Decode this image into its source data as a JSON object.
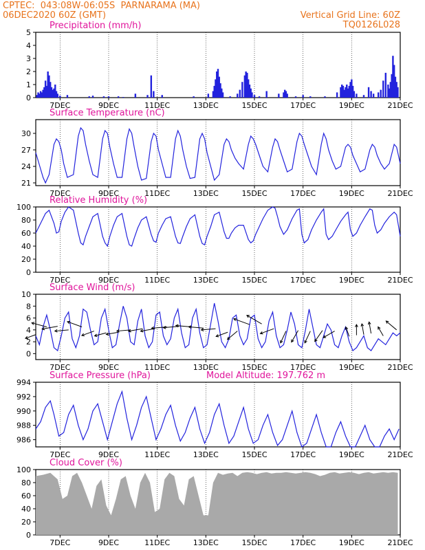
{
  "header": {
    "line1_left": "CPTEC:  043:08W-06:05S  PARNARAMA (MA)",
    "line2_left": "06DEC2020 60Z (GMT)",
    "line1_right": "Vertical Grid Line: 60Z",
    "line2_right": "TQ0126L028"
  },
  "colors": {
    "header": "#e8731c",
    "title": "#e0149b",
    "line": "#2222dd",
    "cloud": "#a9a9a9"
  },
  "x_axis": {
    "tick_labels": [
      "7DEC",
      "9DEC",
      "11DEC",
      "13DEC",
      "15DEC",
      "17DEC",
      "19DEC",
      "21DEC"
    ],
    "tick_days": [
      7,
      9,
      11,
      13,
      15,
      17,
      19,
      21
    ],
    "range_days": [
      6,
      21
    ]
  },
  "chart_data": [
    {
      "id": "precip",
      "type": "bar",
      "title": "Precipitation (mm/h)",
      "ylim": [
        0,
        5
      ],
      "yticks": [
        0,
        1,
        2,
        3,
        4,
        5
      ],
      "grid": "vertical dotted",
      "x_days": [
        6.05,
        6.1,
        6.15,
        6.2,
        6.25,
        6.3,
        6.35,
        6.4,
        6.45,
        6.5,
        6.55,
        6.6,
        6.65,
        6.7,
        6.75,
        6.8,
        6.85,
        6.9,
        7.0,
        7.3,
        8.2,
        8.35,
        8.8,
        9.0,
        9.4,
        9.6,
        10.1,
        10.6,
        10.75,
        10.85,
        11.2,
        12.5,
        13.1,
        13.3,
        13.35,
        13.4,
        13.45,
        13.5,
        13.55,
        13.6,
        13.65,
        13.7,
        14.0,
        14.3,
        14.4,
        14.5,
        14.6,
        14.65,
        14.7,
        14.75,
        14.8,
        14.85,
        14.9,
        15.0,
        15.2,
        15.5,
        16.0,
        16.2,
        16.25,
        16.3,
        16.35,
        16.7,
        17.0,
        17.3,
        17.9,
        18.4,
        18.55,
        18.6,
        18.65,
        18.7,
        18.75,
        18.8,
        18.85,
        18.9,
        18.95,
        19.0,
        19.05,
        19.1,
        19.2,
        19.5,
        19.7,
        19.8,
        19.9,
        20.1,
        20.2,
        20.3,
        20.4,
        20.5,
        20.55,
        20.6,
        20.65,
        20.7,
        20.75,
        20.8,
        20.85,
        20.9
      ],
      "values": [
        0.2,
        0.4,
        0.3,
        0.5,
        0.4,
        0.6,
        0.8,
        1.3,
        0.9,
        2.0,
        1.7,
        1.2,
        0.8,
        0.6,
        0.7,
        1.0,
        0.5,
        0.3,
        0.15,
        0.2,
        0.1,
        0.15,
        0.1,
        0.1,
        0.1,
        0.05,
        0.3,
        0.2,
        1.7,
        0.5,
        0.2,
        0.1,
        0.3,
        0.5,
        0.9,
        1.4,
        2.0,
        2.2,
        1.6,
        1.1,
        0.7,
        0.4,
        0.1,
        0.3,
        0.6,
        1.2,
        1.7,
        2.0,
        1.9,
        1.4,
        1.0,
        0.7,
        0.4,
        0.2,
        0.1,
        0.5,
        0.3,
        0.4,
        0.6,
        0.5,
        0.3,
        0.1,
        0.2,
        0.1,
        0.1,
        0.4,
        0.8,
        1.0,
        0.9,
        0.6,
        0.8,
        1.0,
        0.7,
        0.9,
        1.2,
        1.4,
        0.9,
        0.5,
        0.3,
        0.2,
        0.8,
        0.5,
        0.3,
        0.4,
        0.6,
        1.3,
        1.9,
        1.0,
        0.7,
        1.2,
        1.8,
        3.2,
        2.5,
        1.6,
        1.2,
        0.8
      ]
    },
    {
      "id": "temperature",
      "type": "line",
      "title": "Surface Temperature (nC)",
      "ylim": [
        20.5,
        32.5
      ],
      "yticks": [
        21,
        24,
        27,
        30
      ],
      "grid": "vertical dotted",
      "x_days": [
        6.0,
        6.1,
        6.2,
        6.3,
        6.4,
        6.55,
        6.75,
        6.85,
        6.95,
        7.05,
        7.15,
        7.3,
        7.55,
        7.75,
        7.85,
        7.95,
        8.05,
        8.2,
        8.35,
        8.55,
        8.75,
        8.85,
        8.95,
        9.05,
        9.2,
        9.35,
        9.55,
        9.75,
        9.85,
        9.95,
        10.05,
        10.2,
        10.35,
        10.55,
        10.75,
        10.85,
        10.95,
        11.05,
        11.2,
        11.35,
        11.55,
        11.75,
        11.85,
        11.95,
        12.05,
        12.2,
        12.35,
        12.55,
        12.75,
        12.85,
        12.95,
        13.05,
        13.2,
        13.35,
        13.55,
        13.75,
        13.85,
        13.95,
        14.05,
        14.2,
        14.35,
        14.55,
        14.75,
        14.85,
        14.95,
        15.05,
        15.2,
        15.35,
        15.55,
        15.75,
        15.85,
        15.95,
        16.05,
        16.2,
        16.35,
        16.55,
        16.75,
        16.85,
        16.95,
        17.05,
        17.2,
        17.35,
        17.55,
        17.75,
        17.85,
        17.95,
        18.05,
        18.2,
        18.35,
        18.55,
        18.75,
        18.85,
        18.95,
        19.05,
        19.2,
        19.35,
        19.55,
        19.75,
        19.85,
        19.95,
        20.05,
        20.2,
        20.35,
        20.55,
        20.75,
        20.85,
        21.0
      ],
      "values": [
        26.5,
        25.0,
        23.5,
        22.0,
        21.0,
        22.5,
        28.0,
        29.0,
        28.5,
        27.0,
        24.5,
        22.0,
        22.5,
        29.5,
        31.0,
        30.5,
        28.0,
        25.0,
        22.5,
        22.0,
        29.0,
        30.5,
        30.0,
        27.5,
        24.5,
        22.0,
        22.0,
        29.0,
        30.8,
        30.0,
        27.5,
        24.0,
        21.5,
        21.8,
        28.5,
        30.0,
        29.5,
        27.0,
        24.5,
        22.0,
        22.0,
        29.0,
        30.5,
        29.5,
        27.0,
        24.0,
        21.8,
        22.0,
        29.0,
        30.0,
        29.0,
        26.5,
        24.0,
        21.5,
        22.5,
        28.0,
        29.0,
        28.5,
        27.0,
        25.5,
        24.5,
        23.5,
        28.0,
        29.5,
        29.0,
        28.0,
        26.0,
        24.0,
        23.0,
        27.5,
        29.0,
        28.5,
        27.0,
        25.0,
        23.0,
        23.5,
        28.5,
        30.0,
        29.5,
        28.0,
        26.0,
        24.0,
        22.5,
        28.0,
        30.0,
        29.0,
        27.0,
        25.0,
        23.5,
        24.0,
        27.5,
        28.0,
        27.5,
        26.0,
        24.5,
        23.0,
        23.5,
        27.0,
        28.0,
        27.5,
        26.0,
        24.5,
        23.5,
        24.5,
        28.0,
        27.5,
        24.5
      ]
    },
    {
      "id": "humidity",
      "type": "line",
      "title": "Relative Humidity (%)",
      "ylim": [
        0,
        100
      ],
      "yticks": [
        0,
        20,
        40,
        60,
        80,
        100
      ],
      "grid": "vertical dotted",
      "x_days": [
        6.0,
        6.2,
        6.4,
        6.55,
        6.75,
        6.85,
        6.95,
        7.05,
        7.2,
        7.35,
        7.55,
        7.75,
        7.85,
        7.95,
        8.05,
        8.2,
        8.35,
        8.55,
        8.75,
        8.85,
        8.95,
        9.05,
        9.2,
        9.35,
        9.55,
        9.75,
        9.85,
        9.95,
        10.05,
        10.2,
        10.35,
        10.55,
        10.75,
        10.85,
        10.95,
        11.05,
        11.2,
        11.35,
        11.55,
        11.75,
        11.85,
        11.95,
        12.05,
        12.2,
        12.35,
        12.55,
        12.75,
        12.85,
        12.95,
        13.05,
        13.2,
        13.35,
        13.55,
        13.75,
        13.85,
        13.95,
        14.05,
        14.2,
        14.35,
        14.55,
        14.75,
        14.85,
        14.95,
        15.05,
        15.2,
        15.35,
        15.55,
        15.75,
        15.85,
        15.95,
        16.05,
        16.2,
        16.35,
        16.55,
        16.75,
        16.85,
        16.95,
        17.05,
        17.2,
        17.35,
        17.55,
        17.75,
        17.85,
        17.95,
        18.05,
        18.2,
        18.35,
        18.55,
        18.75,
        18.85,
        18.95,
        19.05,
        19.2,
        19.35,
        19.55,
        19.75,
        19.85,
        19.95,
        20.05,
        20.2,
        20.35,
        20.55,
        20.75,
        20.85,
        21.0
      ],
      "values": [
        60,
        75,
        90,
        95,
        75,
        60,
        62,
        78,
        92,
        100,
        95,
        60,
        45,
        42,
        55,
        70,
        85,
        90,
        55,
        45,
        40,
        55,
        72,
        85,
        90,
        55,
        42,
        40,
        52,
        68,
        80,
        85,
        58,
        48,
        46,
        60,
        72,
        82,
        85,
        55,
        45,
        44,
        55,
        70,
        82,
        88,
        55,
        44,
        42,
        55,
        70,
        88,
        92,
        62,
        52,
        52,
        60,
        68,
        72,
        72,
        50,
        45,
        48,
        58,
        70,
        82,
        95,
        100,
        98,
        85,
        70,
        58,
        65,
        82,
        95,
        97,
        58,
        45,
        50,
        65,
        80,
        92,
        97,
        58,
        50,
        55,
        65,
        78,
        88,
        92,
        65,
        55,
        60,
        72,
        85,
        97,
        95,
        72,
        60,
        65,
        75,
        85,
        92,
        88,
        55
      ]
    },
    {
      "id": "wind",
      "type": "line",
      "title": "Surface Wind (m/s)",
      "ylim": [
        -1,
        10
      ],
      "yticks": [
        0,
        2,
        4,
        6,
        8,
        10
      ],
      "grid": "vertical dotted",
      "x_days": [
        6.0,
        6.15,
        6.3,
        6.45,
        6.6,
        6.75,
        6.9,
        7.05,
        7.2,
        7.35,
        7.5,
        7.65,
        7.8,
        7.95,
        8.1,
        8.25,
        8.4,
        8.55,
        8.7,
        8.85,
        9.0,
        9.15,
        9.3,
        9.45,
        9.6,
        9.75,
        9.9,
        10.05,
        10.2,
        10.35,
        10.5,
        10.65,
        10.8,
        10.95,
        11.1,
        11.25,
        11.4,
        11.55,
        11.7,
        11.85,
        12.0,
        12.15,
        12.3,
        12.45,
        12.6,
        12.75,
        12.9,
        13.05,
        13.2,
        13.35,
        13.5,
        13.65,
        13.8,
        13.95,
        14.1,
        14.25,
        14.4,
        14.55,
        14.7,
        14.85,
        15.0,
        15.15,
        15.3,
        15.45,
        15.6,
        15.75,
        15.9,
        16.05,
        16.2,
        16.35,
        16.5,
        16.65,
        16.8,
        16.95,
        17.1,
        17.25,
        17.4,
        17.55,
        17.7,
        17.85,
        18.0,
        18.15,
        18.3,
        18.45,
        18.6,
        18.75,
        18.9,
        19.05,
        19.2,
        19.35,
        19.5,
        19.65,
        19.8,
        19.95,
        20.1,
        20.25,
        20.4,
        20.55,
        20.7,
        20.85,
        21.0
      ],
      "values": [
        3.0,
        1.5,
        4.5,
        6.5,
        4.0,
        1.0,
        0.5,
        3.0,
        6.0,
        7.0,
        2.5,
        1.0,
        3.0,
        7.5,
        7.0,
        4.0,
        1.5,
        2.0,
        6.0,
        7.5,
        4.0,
        1.0,
        1.5,
        5.0,
        8.0,
        6.0,
        2.0,
        1.5,
        5.5,
        7.5,
        3.0,
        1.0,
        2.0,
        6.5,
        7.0,
        3.0,
        1.5,
        2.5,
        6.0,
        7.5,
        3.5,
        1.0,
        1.5,
        6.0,
        7.5,
        3.5,
        1.0,
        1.5,
        5.0,
        8.5,
        5.5,
        2.0,
        1.0,
        2.5,
        6.0,
        6.5,
        3.0,
        1.5,
        2.5,
        6.0,
        6.5,
        2.5,
        1.0,
        2.0,
        5.5,
        7.0,
        3.0,
        1.0,
        1.5,
        4.0,
        7.0,
        5.0,
        1.5,
        1.0,
        4.0,
        7.5,
        4.5,
        1.5,
        1.0,
        3.0,
        5.0,
        4.0,
        1.5,
        1.0,
        3.0,
        4.5,
        2.0,
        0.5,
        1.0,
        2.0,
        3.0,
        1.0,
        0.5,
        1.5,
        2.5,
        2.0,
        1.5,
        2.5,
        3.5,
        3.0,
        3.5
      ],
      "arrow_days": [
        6.0,
        6.45,
        6.9,
        7.35,
        7.9,
        8.4,
        8.9,
        9.4,
        9.9,
        10.4,
        10.9,
        11.4,
        11.9,
        12.4,
        12.9,
        13.4,
        13.9,
        14.3,
        14.8,
        15.3,
        15.8,
        16.3,
        16.8,
        17.3,
        17.8,
        18.3,
        18.9,
        19.2,
        19.5,
        19.8,
        20.3,
        20.85
      ],
      "arrow_speeds": [
        3.2,
        4.5,
        4.6,
        4.0,
        4.5,
        3.8,
        3.5,
        3.6,
        4.0,
        4.2,
        4.2,
        4.5,
        4.6,
        4.5,
        4.3,
        4.2,
        3.6,
        3.8,
        4.9,
        5.0,
        4.2,
        3.8,
        3.9,
        3.8,
        3.9,
        3.8,
        2.9,
        3.1,
        3.2,
        3.4,
        3.0,
        4.0
      ],
      "arrow_dirs_deg": [
        200,
        165,
        190,
        185,
        160,
        200,
        195,
        190,
        185,
        190,
        190,
        185,
        185,
        175,
        175,
        185,
        200,
        220,
        160,
        150,
        200,
        245,
        240,
        245,
        235,
        210,
        110,
        90,
        100,
        100,
        120,
        140
      ]
    },
    {
      "id": "pressure",
      "type": "line",
      "title": "Surface Pressure (hPa)",
      "annotation": "Model Altitude: 197.762 m",
      "ylim": [
        985,
        994
      ],
      "yticks": [
        986,
        988,
        990,
        992,
        994
      ],
      "grid": "vertical dotted",
      "x_days": [
        6.0,
        6.2,
        6.4,
        6.6,
        6.75,
        6.95,
        7.15,
        7.35,
        7.55,
        7.75,
        7.95,
        8.15,
        8.35,
        8.55,
        8.75,
        8.95,
        9.15,
        9.35,
        9.55,
        9.75,
        9.95,
        10.15,
        10.35,
        10.55,
        10.75,
        10.95,
        11.15,
        11.35,
        11.55,
        11.75,
        11.95,
        12.15,
        12.35,
        12.55,
        12.75,
        12.95,
        13.15,
        13.35,
        13.55,
        13.75,
        13.95,
        14.15,
        14.35,
        14.55,
        14.75,
        14.95,
        15.15,
        15.35,
        15.55,
        15.75,
        15.95,
        16.15,
        16.35,
        16.55,
        16.75,
        16.95,
        17.15,
        17.35,
        17.55,
        17.75,
        17.95,
        18.15,
        18.35,
        18.55,
        18.75,
        18.95,
        19.15,
        19.35,
        19.55,
        19.75,
        19.95,
        20.15,
        20.35,
        20.55,
        20.75,
        20.95
      ],
      "values": [
        987.5,
        988.5,
        990.5,
        991.4,
        989.5,
        986.5,
        987.0,
        989.5,
        990.8,
        988.0,
        986.0,
        987.5,
        990.0,
        991.0,
        988.5,
        986.0,
        988.5,
        991.0,
        992.7,
        989.0,
        986.0,
        988.0,
        990.5,
        992.0,
        989.0,
        986.0,
        987.5,
        989.5,
        990.8,
        988.0,
        985.8,
        987.0,
        989.0,
        990.5,
        987.5,
        985.5,
        987.0,
        989.5,
        991.0,
        988.0,
        985.5,
        986.5,
        988.5,
        990.5,
        987.5,
        985.5,
        986.0,
        988.0,
        989.5,
        987.0,
        985.2,
        986.0,
        988.0,
        990.0,
        987.0,
        985.0,
        985.5,
        987.5,
        989.5,
        987.0,
        985.0,
        985.0,
        987.0,
        988.5,
        986.5,
        985.0,
        985.0,
        986.5,
        988.0,
        986.0,
        985.0,
        985.0,
        986.5,
        987.5,
        986.0,
        987.5
      ]
    },
    {
      "id": "cloud",
      "type": "area",
      "title": "Cloud Cover (%)",
      "ylim": [
        0,
        100
      ],
      "yticks": [
        0,
        20,
        40,
        60,
        80,
        100
      ],
      "grid": "vertical dotted",
      "x_days": [
        6.0,
        6.3,
        6.6,
        6.9,
        7.1,
        7.3,
        7.5,
        7.7,
        7.9,
        8.1,
        8.3,
        8.5,
        8.7,
        8.9,
        9.1,
        9.3,
        9.5,
        9.7,
        9.9,
        10.1,
        10.3,
        10.5,
        10.7,
        10.9,
        11.1,
        11.3,
        11.5,
        11.7,
        11.9,
        12.1,
        12.3,
        12.5,
        12.7,
        12.9,
        13.1,
        13.3,
        13.5,
        13.7,
        13.9,
        14.1,
        14.3,
        14.5,
        14.7,
        14.9,
        15.1,
        15.3,
        15.5,
        15.7,
        15.9,
        16.1,
        16.3,
        16.5,
        16.7,
        16.9,
        17.1,
        17.3,
        17.5,
        17.7,
        17.9,
        18.1,
        18.3,
        18.5,
        18.7,
        18.9,
        19.1,
        19.3,
        19.5,
        19.7,
        19.9,
        20.1,
        20.3,
        20.5,
        20.7,
        20.9
      ],
      "values": [
        90,
        92,
        95,
        85,
        55,
        60,
        90,
        95,
        80,
        60,
        40,
        75,
        85,
        45,
        30,
        55,
        85,
        90,
        60,
        40,
        80,
        95,
        80,
        35,
        40,
        85,
        95,
        90,
        55,
        45,
        85,
        90,
        60,
        30,
        30,
        80,
        95,
        92,
        94,
        95,
        90,
        95,
        96,
        95,
        93,
        95,
        96,
        94,
        95,
        95,
        96,
        95,
        94,
        95,
        96,
        95,
        93,
        90,
        92,
        95,
        96,
        94,
        95,
        96,
        95,
        93,
        95,
        96,
        94,
        95,
        96,
        95,
        96,
        95
      ]
    }
  ]
}
